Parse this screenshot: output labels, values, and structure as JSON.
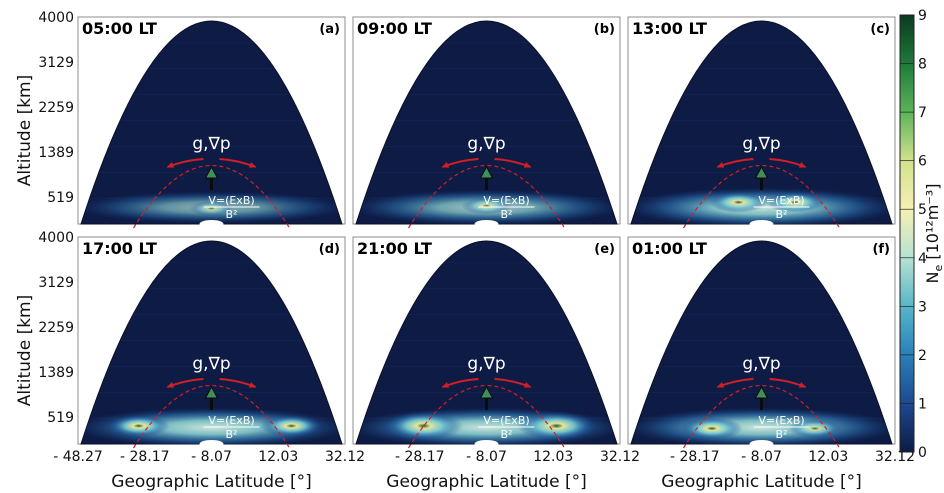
{
  "chart_data": {
    "type": "heatmap",
    "xlabel": "Geographic Latitude [°]",
    "ylabel": "Altitude [km]",
    "x_ticks": [
      "- 48.27",
      "- 28.17",
      "- 8.07",
      "12.03",
      "32.12"
    ],
    "y_ticks": [
      "519",
      "1389",
      "2259",
      "3129",
      "4000"
    ],
    "xlim": [
      -48.27,
      32.12
    ],
    "ylim": [
      0,
      4000
    ],
    "colorbar": {
      "label": "N",
      "label_sub": "e",
      "label_unit": " [10¹²m⁻³]",
      "ticks": [
        "0",
        "1",
        "2",
        "3",
        "4",
        "5",
        "6",
        "7",
        "8",
        "9"
      ],
      "range": [
        0,
        9
      ],
      "colors": [
        "#0d1b45",
        "#1d4a8f",
        "#2a7fb8",
        "#58b5c8",
        "#b5e2d2",
        "#f5f0b4",
        "#d2e28c",
        "#5cb35a",
        "#1e7a3a",
        "#0a3a1e"
      ]
    },
    "annotations": {
      "forces": "g,∇p",
      "velocity_top": "V=(ExB)",
      "velocity_bottom": "B²"
    },
    "panels": [
      {
        "time": "05:00 LT",
        "tag": "(a)",
        "peak_ne": 1.5,
        "blobs": [
          {
            "lat": -8.07,
            "alt": 300,
            "ne": 1.5
          }
        ]
      },
      {
        "time": "09:00 LT",
        "tag": "(b)",
        "peak_ne": 2.5,
        "blobs": [
          {
            "lat": -8.07,
            "alt": 350,
            "ne": 2.5
          }
        ]
      },
      {
        "time": "13:00 LT",
        "tag": "(c)",
        "peak_ne": 4.0,
        "blobs": [
          {
            "lat": -15.0,
            "alt": 420,
            "ne": 4.0
          },
          {
            "lat": 2.0,
            "alt": 420,
            "ne": 4.0
          }
        ]
      },
      {
        "time": "17:00 LT",
        "tag": "(d)",
        "peak_ne": 4.5,
        "blobs": [
          {
            "lat": -30.0,
            "alt": 350,
            "ne": 4.5
          },
          {
            "lat": 16.0,
            "alt": 350,
            "ne": 4.5
          }
        ]
      },
      {
        "time": "21:00 LT",
        "tag": "(e)",
        "peak_ne": 7.5,
        "blobs": [
          {
            "lat": -27.0,
            "alt": 350,
            "ne": 7.5
          },
          {
            "lat": 13.0,
            "alt": 350,
            "ne": 7.5
          }
        ]
      },
      {
        "time": "01:00 LT",
        "tag": "(f)",
        "peak_ne": 4.5,
        "blobs": [
          {
            "lat": -23.0,
            "alt": 300,
            "ne": 4.5
          },
          {
            "lat": 8.0,
            "alt": 300,
            "ne": 3.0
          }
        ]
      }
    ]
  }
}
